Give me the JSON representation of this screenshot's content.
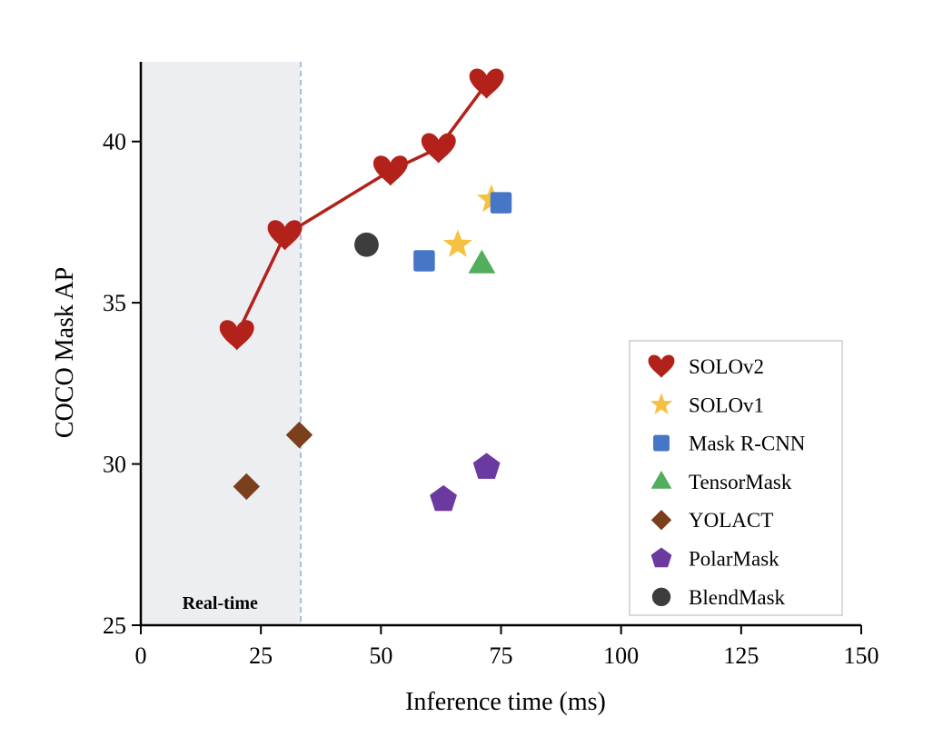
{
  "chart_data": {
    "type": "scatter",
    "xlabel": "Inference time (ms)",
    "ylabel": "COCO Mask AP",
    "xlim": [
      0,
      150
    ],
    "ylim": [
      25,
      42.5
    ],
    "xticks": [
      0,
      25,
      50,
      75,
      100,
      125,
      150
    ],
    "yticks": [
      25,
      30,
      35,
      40
    ],
    "xtick_labels": [
      "0",
      "25",
      "50",
      "75",
      "100",
      "125",
      "150"
    ],
    "ytick_labels": [
      "25",
      "30",
      "35",
      "40"
    ],
    "grid": false,
    "legend_position": "bottom-right",
    "region": {
      "label": "Real-time",
      "x_start": 0,
      "x_end": 33.3,
      "color": "#eceef2",
      "line_color": "#a9bde0"
    },
    "series": [
      {
        "name": "SOLOv2",
        "marker": "heart",
        "color": "#b2221a",
        "line": true,
        "points": [
          {
            "x": 20,
            "y": 34.0
          },
          {
            "x": 30,
            "y": 37.1
          },
          {
            "x": 52,
            "y": 39.1
          },
          {
            "x": 62,
            "y": 39.8
          },
          {
            "x": 72,
            "y": 41.8
          }
        ]
      },
      {
        "name": "SOLOv1",
        "marker": "star",
        "color": "#f5c142",
        "line": false,
        "points": [
          {
            "x": 66,
            "y": 36.8
          },
          {
            "x": 73,
            "y": 38.2
          }
        ]
      },
      {
        "name": "Mask R-CNN",
        "marker": "square",
        "color": "#4876c6",
        "line": false,
        "points": [
          {
            "x": 59,
            "y": 36.3
          },
          {
            "x": 75,
            "y": 38.1
          }
        ]
      },
      {
        "name": "TensorMask",
        "marker": "triangle",
        "color": "#52ad5c",
        "line": false,
        "points": [
          {
            "x": 71,
            "y": 36.2
          }
        ]
      },
      {
        "name": "YOLACT",
        "marker": "diamond",
        "color": "#7b3f1c",
        "line": false,
        "points": [
          {
            "x": 22,
            "y": 29.3
          },
          {
            "x": 33,
            "y": 30.9
          }
        ]
      },
      {
        "name": "PolarMask",
        "marker": "pentagon",
        "color": "#6a3aa0",
        "line": false,
        "points": [
          {
            "x": 63,
            "y": 28.9
          },
          {
            "x": 72,
            "y": 29.9
          }
        ]
      },
      {
        "name": "BlendMask",
        "marker": "circle",
        "color": "#3c3c3c",
        "line": false,
        "points": [
          {
            "x": 47,
            "y": 36.8
          }
        ]
      }
    ]
  }
}
